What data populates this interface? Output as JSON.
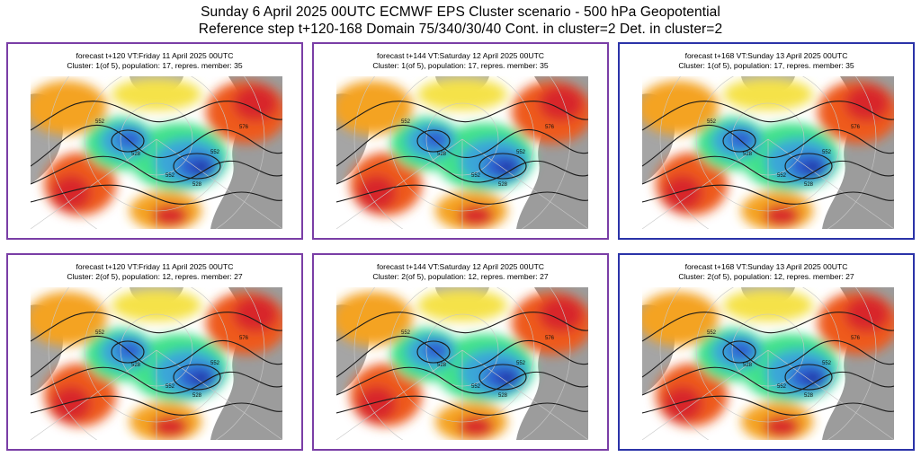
{
  "title": {
    "line1": "Sunday 6 April 2025 00UTC ECMWF EPS Cluster scenario - 500 hPa Geopotential",
    "line2": "Reference step t+120-168 Domain 75/340/30/40 Cont. in cluster=2 Det. in cluster=2"
  },
  "colors": {
    "frame_purple": "#7a3ea6",
    "frame_blue": "#2b33a8",
    "land_gray": "#9c9c9c",
    "positive_anomaly": [
      "#f5e24a",
      "#f4a321",
      "#ee5a1e",
      "#d8262a",
      "#9c1d4c"
    ],
    "negative_anomaly": [
      "#3fe18a",
      "#2cc9a3",
      "#3aa6d8",
      "#2e5fd0",
      "#2233a0"
    ]
  },
  "panels": [
    {
      "caption1": "forecast t+120 VT:Friday 11 April 2025 00UTC",
      "caption2": "Cluster: 1(of 5), population: 17, repres. member: 35",
      "frame": "purple"
    },
    {
      "caption1": "forecast t+144 VT:Saturday 12 April 2025 00UTC",
      "caption2": "Cluster: 1(of 5), population: 17, repres. member: 35",
      "frame": "purple"
    },
    {
      "caption1": "forecast t+168 VT:Sunday 13 April 2025 00UTC",
      "caption2": "Cluster: 1(of 5), population: 17, repres. member: 35",
      "frame": "blue"
    },
    {
      "caption1": "forecast t+120 VT:Friday 11 April 2025 00UTC",
      "caption2": "Cluster: 2(of 5), population: 12, repres. member: 27",
      "frame": "purple"
    },
    {
      "caption1": "forecast t+144 VT:Saturday 12 April 2025 00UTC",
      "caption2": "Cluster: 2(of 5), population: 12, repres. member: 27",
      "frame": "purple"
    },
    {
      "caption1": "forecast t+168 VT:Sunday 13 April 2025 00UTC",
      "caption2": "Cluster: 2(of 5), population: 12, repres. member: 27",
      "frame": "blue"
    }
  ],
  "contour_labels": [
    "552",
    "528",
    "552",
    "576",
    "552",
    "528"
  ]
}
